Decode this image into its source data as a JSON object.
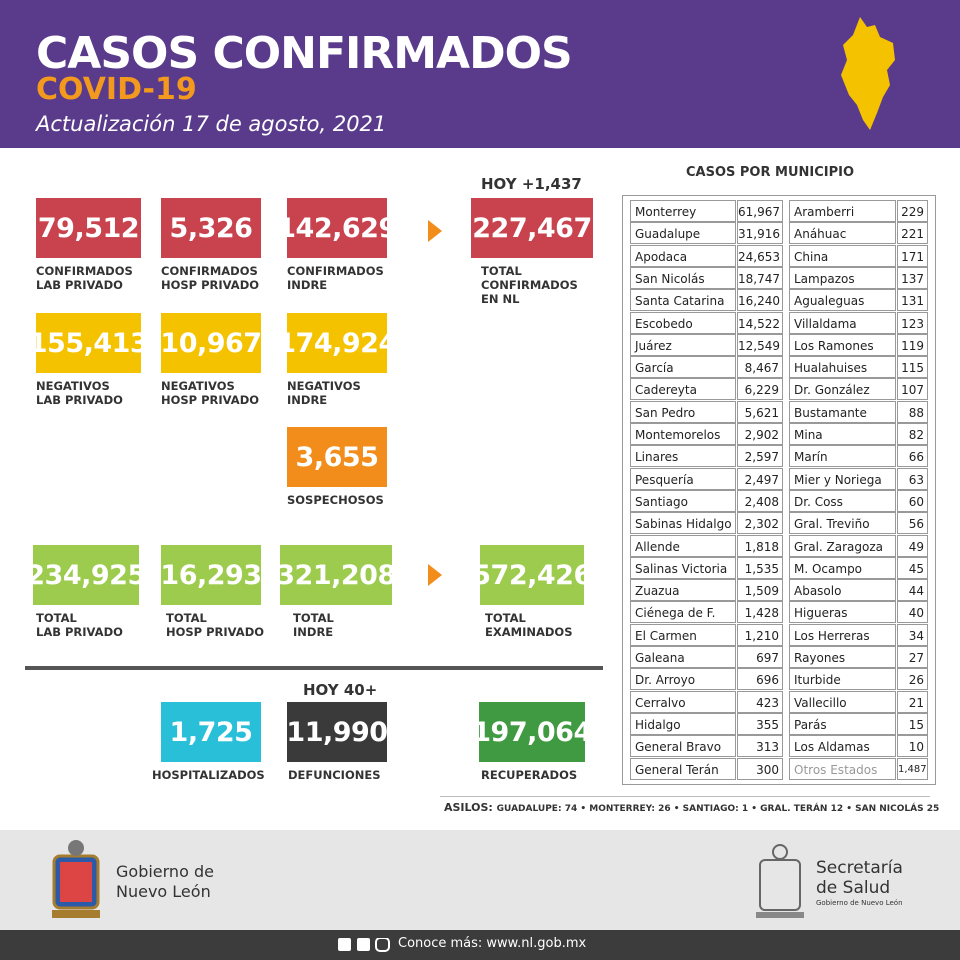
{
  "header": {
    "title": "CASOS CONFIRMADOS",
    "subtitle": "COVID-19",
    "update": "Actualización 17 de agosto, 2021"
  },
  "today_cases": "HOY +1,437",
  "today_deaths": "HOY 40+",
  "boxes": [
    {
      "value": "79,512",
      "label": [
        "CONFIRMADOS",
        "LAB PRIVADO"
      ]
    },
    {
      "value": "5,326",
      "label": [
        "CONFIRMADOS",
        "HOSP PRIVADO"
      ]
    },
    {
      "value": "142,629",
      "label": [
        "CONFIRMADOS",
        "INDRE"
      ]
    },
    {
      "value": "227,467",
      "label": [
        "TOTAL",
        "CONFIRMADOS",
        "EN NL"
      ]
    },
    {
      "value": "155,413",
      "label": [
        "NEGATIVOS",
        "LAB PRIVADO"
      ]
    },
    {
      "value": "10,967",
      "label": [
        "NEGATIVOS",
        "HOSP PRIVADO"
      ]
    },
    {
      "value": "174,924",
      "label": [
        "NEGATIVOS",
        "INDRE"
      ]
    },
    {
      "value": "3,655",
      "label": [
        "SOSPECHOSOS"
      ]
    },
    {
      "value": "234,925",
      "label": [
        "TOTAL",
        "LAB PRIVADO"
      ]
    },
    {
      "value": "16,293",
      "label": [
        "TOTAL",
        "HOSP PRIVADO"
      ]
    },
    {
      "value": "321,208",
      "label": [
        "TOTAL",
        "INDRE"
      ]
    },
    {
      "value": "572,426",
      "label": [
        "TOTAL",
        "EXAMINADOS"
      ]
    },
    {
      "value": "1,725",
      "label": [
        "HOSPITALIZADOS"
      ]
    },
    {
      "value": "11,990",
      "label": [
        "DEFUNCIONES"
      ]
    },
    {
      "value": "197,064",
      "label": [
        "RECUPERADOS"
      ]
    }
  ],
  "municipios": {
    "title": "CASOS POR MUNICIPIO",
    "left": [
      [
        "Monterrey",
        "61,967"
      ],
      [
        "Guadalupe",
        "31,916"
      ],
      [
        "Apodaca",
        "24,653"
      ],
      [
        "San Nicolás",
        "18,747"
      ],
      [
        "Santa Catarina",
        "16,240"
      ],
      [
        "Escobedo",
        "14,522"
      ],
      [
        "Juárez",
        "12,549"
      ],
      [
        "García",
        "8,467"
      ],
      [
        "Cadereyta",
        "6,229"
      ],
      [
        "San Pedro",
        "5,621"
      ],
      [
        "Montemorelos",
        "2,902"
      ],
      [
        "Linares",
        "2,597"
      ],
      [
        "Pesquería",
        "2,497"
      ],
      [
        "Santiago",
        "2,408"
      ],
      [
        "Sabinas Hidalgo",
        "2,302"
      ],
      [
        "Allende",
        "1,818"
      ],
      [
        "Salinas Victoria",
        "1,535"
      ],
      [
        "Zuazua",
        "1,509"
      ],
      [
        "Ciénega de F.",
        "1,428"
      ],
      [
        "El Carmen",
        "1,210"
      ],
      [
        "Galeana",
        "697"
      ],
      [
        "Dr. Arroyo",
        "696"
      ],
      [
        "Cerralvo",
        "423"
      ],
      [
        "Hidalgo",
        "355"
      ],
      [
        "General Bravo",
        "313"
      ],
      [
        "General Terán",
        "300"
      ]
    ],
    "right": [
      [
        "Aramberri",
        "229"
      ],
      [
        "Anáhuac",
        "221"
      ],
      [
        "China",
        "171"
      ],
      [
        "Lampazos",
        "137"
      ],
      [
        "Agualeguas",
        "131"
      ],
      [
        "Villaldama",
        "123"
      ],
      [
        "Los Ramones",
        "119"
      ],
      [
        "Hualahuises",
        "115"
      ],
      [
        "Dr. González",
        "107"
      ],
      [
        "Bustamante",
        "88"
      ],
      [
        "Mina",
        "82"
      ],
      [
        "Marín",
        "66"
      ],
      [
        "Mier y Noriega",
        "63"
      ],
      [
        "Dr. Coss",
        "60"
      ],
      [
        "Gral. Treviño",
        "56"
      ],
      [
        "Gral. Zaragoza",
        "49"
      ],
      [
        "M. Ocampo",
        "45"
      ],
      [
        "Abasolo",
        "44"
      ],
      [
        "Higueras",
        "40"
      ],
      [
        "Los Herreras",
        "34"
      ],
      [
        "Rayones",
        "27"
      ],
      [
        "Iturbide",
        "26"
      ],
      [
        "Vallecillo",
        "21"
      ],
      [
        "Parás",
        "15"
      ],
      [
        "Los Aldamas",
        "10"
      ],
      [
        "Otros Estados",
        "1,487"
      ]
    ]
  },
  "asilos": {
    "label": "ASILOS:",
    "text": "GUADALUPE: 74 • MONTERREY: 26 • SANTIAGO: 1 • GRAL. TERÁN 12 • SAN NICOLÁS 25"
  },
  "footer": {
    "gobierno": [
      "Gobierno de",
      "Nuevo León"
    ],
    "secretaria": [
      "Secretaría",
      "de Salud"
    ],
    "secretaria_sub": "Gobierno de Nuevo León",
    "link": "Conoce más: www.nl.gob.mx"
  }
}
